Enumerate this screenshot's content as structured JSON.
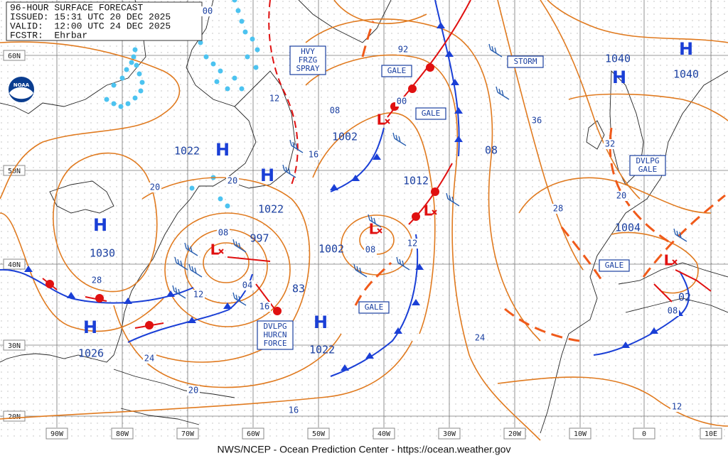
{
  "header": {
    "lines": [
      "96-HOUR SURFACE FORECAST",
      "ISSUED: 15:31 UTC 20 DEC 2025",
      "VALID:  12:00 UTC 24 DEC 2025",
      "FCSTR:  Ehrbar"
    ]
  },
  "logo": "NOAA",
  "footer": "NWS/NCEP - Ocean Prediction Center - https://ocean.weather.gov",
  "grid": {
    "lat_labels": [
      "60N",
      "50N",
      "40N",
      "30N",
      "20N"
    ],
    "lon_labels": [
      "90W",
      "80W",
      "70W",
      "60W",
      "50W",
      "40W",
      "30W",
      "20W",
      "10W",
      "0",
      "10E"
    ]
  },
  "high_symbols": [
    "H",
    "H",
    "H",
    "H",
    "H",
    "H",
    "H"
  ],
  "low_symbols": [
    "L",
    "L",
    "L",
    "L",
    "L"
  ],
  "pressure_labels": [
    "1022",
    "1022",
    "1030",
    "1026",
    "1022",
    "1040",
    "1040",
    "1002",
    "1012",
    "1002",
    "997",
    "1004",
    "83",
    "02",
    "08"
  ],
  "isobar_labels": [
    "92",
    "00",
    "08",
    "12",
    "16",
    "20",
    "20",
    "08",
    "04",
    "12",
    "16",
    "28",
    "24",
    "20",
    "16",
    "12",
    "08",
    "36",
    "32",
    "28",
    "20",
    "24",
    "08",
    "12",
    "00"
  ],
  "box_labels": [
    {
      "lines": [
        "HVY",
        "FRZG",
        "SPRAY"
      ]
    },
    {
      "lines": [
        "GALE"
      ]
    },
    {
      "lines": [
        "GALE"
      ]
    },
    {
      "lines": [
        "STORM"
      ]
    },
    {
      "lines": [
        "DVLPG",
        "GALE"
      ]
    },
    {
      "lines": [
        "GALE"
      ]
    },
    {
      "lines": [
        "GALE"
      ]
    },
    {
      "lines": [
        "DVLPG",
        "HURCN",
        "FORCE"
      ]
    }
  ]
}
